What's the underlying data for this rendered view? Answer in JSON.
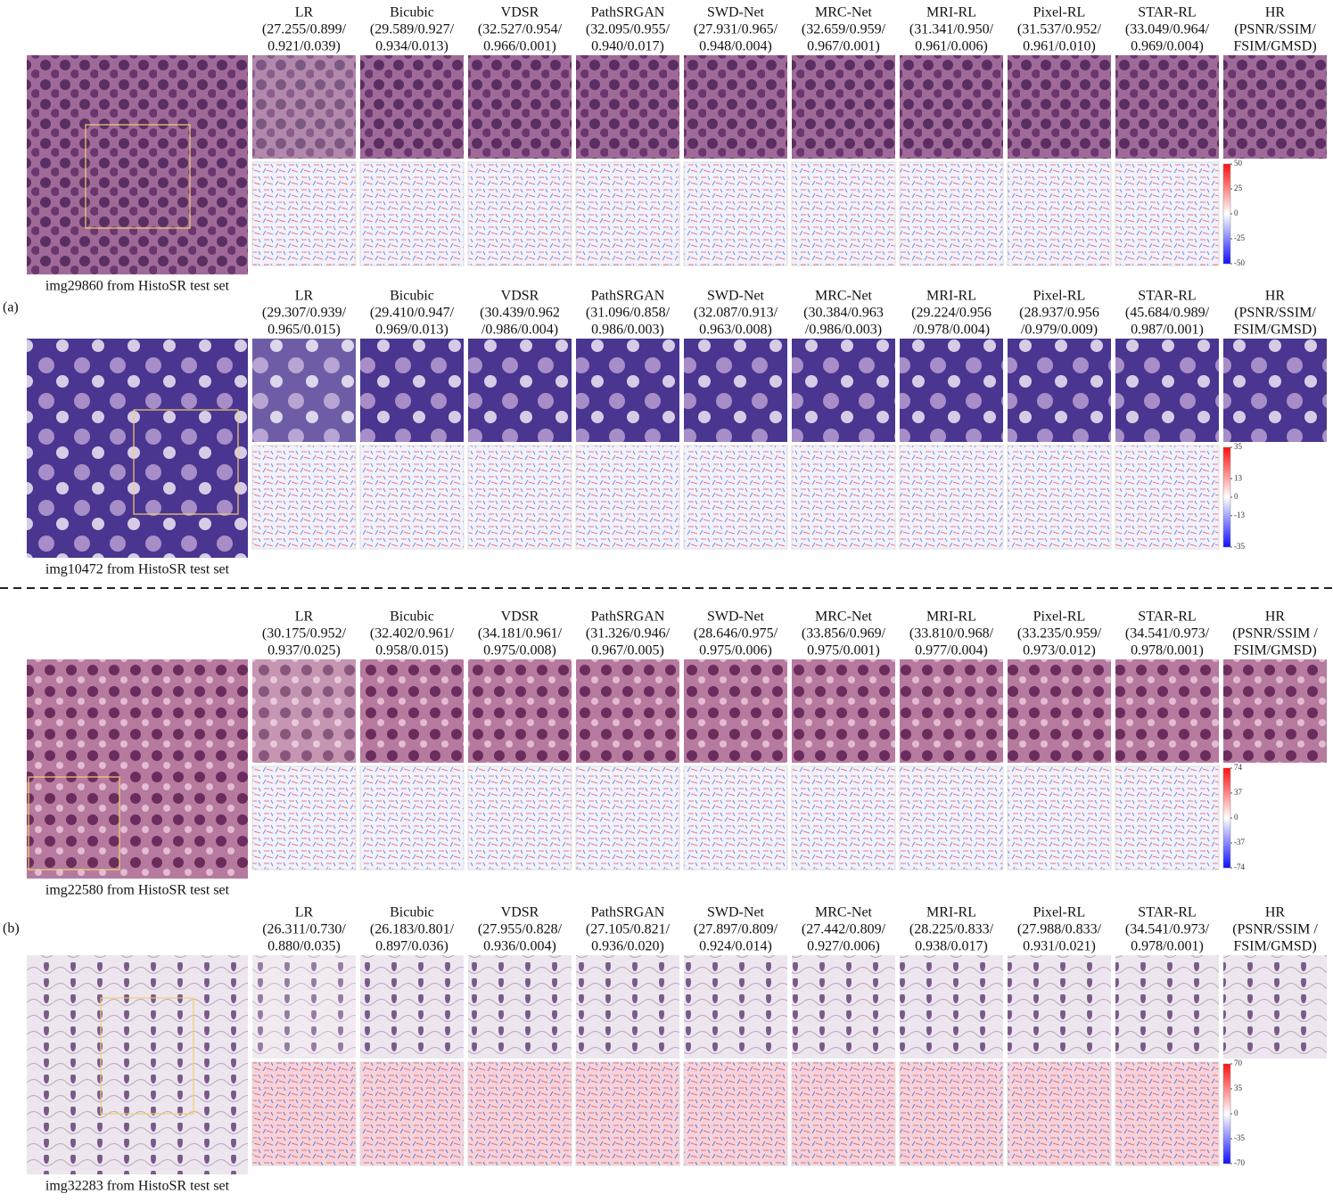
{
  "panel_labels": [
    "(a)",
    "(b)"
  ],
  "rows": [
    {
      "caption": "img29860 from HistoSR test set",
      "colorbar": [
        50,
        25,
        0,
        -25,
        -50
      ],
      "columns": [
        {
          "name": "LR",
          "metrics": [
            "(27.255/0.899/",
            "0.921/0.039)"
          ]
        },
        {
          "name": "Bicubic",
          "metrics": [
            "(29.589/0.927/",
            "0.934/0.013)"
          ]
        },
        {
          "name": "VDSR",
          "metrics": [
            "(32.527/0.954/",
            "0.966/0.001)"
          ]
        },
        {
          "name": "PathSRGAN",
          "metrics": [
            "(32.095/0.955/",
            "0.940/0.017)"
          ]
        },
        {
          "name": "SWD-Net",
          "metrics": [
            "(27.931/0.965/",
            "0.948/0.004)"
          ]
        },
        {
          "name": "MRC-Net",
          "metrics": [
            "(32.659/0.959/",
            "0.967/0.001)"
          ]
        },
        {
          "name": "MRI-RL",
          "metrics": [
            "(31.341/0.950/",
            "0.961/0.006)"
          ]
        },
        {
          "name": "Pixel-RL",
          "metrics": [
            "(31.537/0.952/",
            "0.961/0.010)"
          ]
        },
        {
          "name": "STAR-RL",
          "metrics": [
            "(33.049/0.964/",
            "0.969/0.004)"
          ]
        },
        {
          "name": "HR",
          "metrics": [
            "(PSNR/SSIM/",
            "FSIM/GMSD)"
          ]
        }
      ]
    },
    {
      "caption": "img10472 from HistoSR test set",
      "colorbar": [
        35,
        13,
        0,
        -13,
        -35
      ],
      "columns": [
        {
          "name": "LR",
          "metrics": [
            "(29.307/0.939/",
            "0.965/0.015)"
          ]
        },
        {
          "name": "Bicubic",
          "metrics": [
            "(29.410/0.947/",
            "0.969/0.013)"
          ]
        },
        {
          "name": "VDSR",
          "metrics": [
            "(30.439/0.962",
            "/0.986/0.004)"
          ]
        },
        {
          "name": "PathSRGAN",
          "metrics": [
            "(31.096/0.858/",
            "0.986/0.003)"
          ]
        },
        {
          "name": "SWD-Net",
          "metrics": [
            "(32.087/0.913/",
            "0.963/0.008)"
          ]
        },
        {
          "name": "MRC-Net",
          "metrics": [
            "(30.384/0.963",
            "/0.986/0.003)"
          ]
        },
        {
          "name": "MRI-RL",
          "metrics": [
            "(29.224/0.956",
            "/0.978/0.004)"
          ]
        },
        {
          "name": "Pixel-RL",
          "metrics": [
            "(28.937/0.956",
            "/0.979/0.009)"
          ]
        },
        {
          "name": "STAR-RL",
          "metrics": [
            "(45.684/0.989/",
            "0.987/0.001)"
          ]
        },
        {
          "name": "HR",
          "metrics": [
            "(PSNR/SSIM/",
            "FSIM/GMSD)"
          ]
        }
      ]
    },
    {
      "caption": "img22580 from HistoSR test set",
      "colorbar": [
        74,
        37,
        0,
        -37,
        -74
      ],
      "columns": [
        {
          "name": "LR",
          "metrics": [
            "(30.175/0.952/",
            "0.937/0.025)"
          ]
        },
        {
          "name": "Bicubic",
          "metrics": [
            "(32.402/0.961/",
            "0.958/0.015)"
          ]
        },
        {
          "name": "VDSR",
          "metrics": [
            "(34.181/0.961/",
            "0.975/0.008)"
          ]
        },
        {
          "name": "PathSRGAN",
          "metrics": [
            "(31.326/0.946/",
            "0.967/0.005)"
          ]
        },
        {
          "name": "SWD-Net",
          "metrics": [
            "(28.646/0.975/",
            "0.975/0.006)"
          ]
        },
        {
          "name": "MRC-Net",
          "metrics": [
            "(33.856/0.969/",
            "0.975/0.001)"
          ]
        },
        {
          "name": "MRI-RL",
          "metrics": [
            "(33.810/0.968/",
            "0.977/0.004)"
          ]
        },
        {
          "name": "Pixel-RL",
          "metrics": [
            "(33.235/0.959/",
            "0.973/0.012)"
          ]
        },
        {
          "name": "STAR-RL",
          "metrics": [
            "(34.541/0.973/",
            "0.978/0.001)"
          ]
        },
        {
          "name": "HR",
          "metrics": [
            "(PSNR/SSIM /",
            "FSIM/GMSD)"
          ]
        }
      ]
    },
    {
      "caption": "img32283 from HistoSR test set",
      "colorbar": [
        70,
        35,
        0,
        -35,
        -70
      ],
      "columns": [
        {
          "name": "LR",
          "metrics": [
            "(26.311/0.730/",
            "0.880/0.035)"
          ]
        },
        {
          "name": "Bicubic",
          "metrics": [
            "(26.183/0.801/",
            "0.897/0.036)"
          ]
        },
        {
          "name": "VDSR",
          "metrics": [
            "(27.955/0.828/",
            "0.936/0.004)"
          ]
        },
        {
          "name": "PathSRGAN",
          "metrics": [
            "(27.105/0.821/",
            "0.936/0.020)"
          ]
        },
        {
          "name": "SWD-Net",
          "metrics": [
            "(27.897/0.809/",
            "0.924/0.014)"
          ]
        },
        {
          "name": "MRC-Net",
          "metrics": [
            "(27.442/0.809/",
            "0.927/0.006)"
          ]
        },
        {
          "name": "MRI-RL",
          "metrics": [
            "(28.225/0.833/",
            "0.938/0.017)"
          ]
        },
        {
          "name": "Pixel-RL",
          "metrics": [
            "(27.988/0.833/",
            "0.931/0.021)"
          ]
        },
        {
          "name": "STAR-RL",
          "metrics": [
            "(34.541/0.973/",
            "0.978/0.001)"
          ]
        },
        {
          "name": "HR",
          "metrics": [
            "(PSNR/SSIM /",
            "FSIM/GMSD)"
          ]
        }
      ]
    }
  ]
}
